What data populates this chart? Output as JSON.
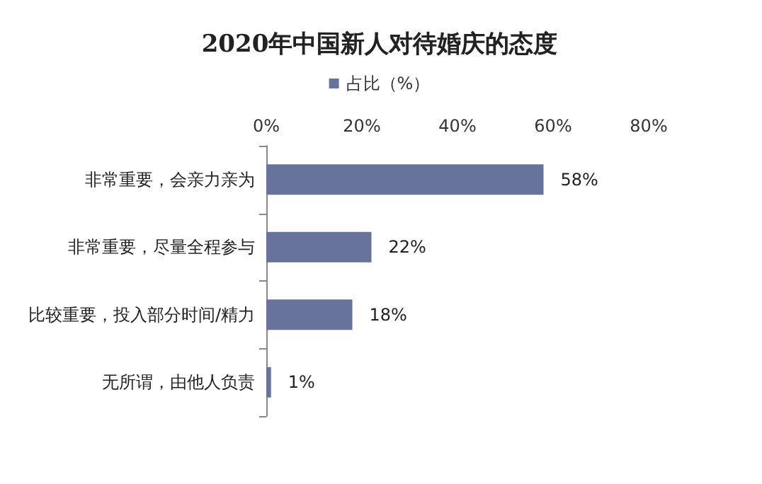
{
  "chart_data": {
    "type": "bar",
    "orientation": "horizontal",
    "title": "2020年中国新人对待婚庆的态度",
    "categories": [
      "非常重要，会亲力亲为",
      "非常重要，尽量全程参与",
      "比较重要，投入部分时间/精力",
      "无所谓，由他人负责"
    ],
    "series": [
      {
        "name": "占比（%）",
        "color": "#67739a",
        "values": [
          58,
          22,
          18,
          1
        ],
        "value_labels": [
          "58%",
          "22%",
          "18%",
          "1%"
        ]
      }
    ],
    "xlim": [
      0,
      80
    ],
    "xticks": [
      {
        "value": 0,
        "label": "0%"
      },
      {
        "value": 20,
        "label": "20%"
      },
      {
        "value": 40,
        "label": "40%"
      },
      {
        "value": 60,
        "label": "60%"
      },
      {
        "value": 80,
        "label": "80%"
      }
    ],
    "grid": false,
    "legend": "top"
  }
}
